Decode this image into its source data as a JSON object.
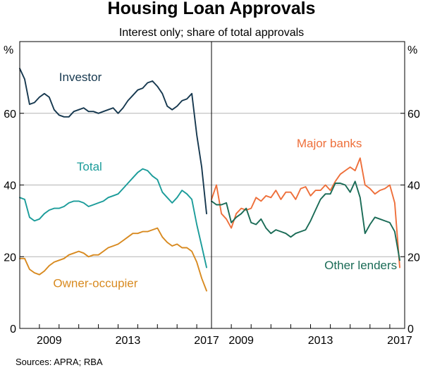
{
  "chart_data": {
    "type": "line",
    "title": "Housing Loan Approvals",
    "subtitle": "Interest only; share of total approvals",
    "unit_left": "%",
    "unit_right": "%",
    "source": "Sources: APRA; RBA",
    "ylim": [
      0,
      80
    ],
    "yticks": [
      0,
      20,
      40,
      60
    ],
    "xlim": [
      2008.0,
      2017.75
    ],
    "xticks": [
      2009,
      2013,
      2017
    ],
    "panels": [
      {
        "name": "left",
        "series": [
          {
            "name": "Investor",
            "color": "#16384f",
            "x": [
              2008.0,
              2008.25,
              2008.5,
              2008.75,
              2009.0,
              2009.25,
              2009.5,
              2009.75,
              2010.0,
              2010.25,
              2010.5,
              2010.75,
              2011.0,
              2011.25,
              2011.5,
              2011.75,
              2012.0,
              2012.25,
              2012.5,
              2012.75,
              2013.0,
              2013.25,
              2013.5,
              2013.75,
              2014.0,
              2014.25,
              2014.5,
              2014.75,
              2015.0,
              2015.25,
              2015.5,
              2015.75,
              2016.0,
              2016.25,
              2016.5,
              2016.75,
              2017.0,
              2017.25,
              2017.5
            ],
            "values": [
              72.5,
              69.5,
              62.5,
              63,
              64.5,
              65.5,
              64.5,
              61,
              59.5,
              59,
              59,
              60.5,
              61,
              61.5,
              60.5,
              60.5,
              60,
              60.5,
              61,
              61.5,
              60,
              61.5,
              63.5,
              65,
              66.5,
              67,
              68.5,
              69,
              67.5,
              65.5,
              62,
              61,
              62,
              63.5,
              64,
              65.5,
              54,
              45,
              32
            ]
          },
          {
            "name": "Total",
            "color": "#1b9c9a",
            "x": [
              2008.0,
              2008.25,
              2008.5,
              2008.75,
              2009.0,
              2009.25,
              2009.5,
              2009.75,
              2010.0,
              2010.25,
              2010.5,
              2010.75,
              2011.0,
              2011.25,
              2011.5,
              2011.75,
              2012.0,
              2012.25,
              2012.5,
              2012.75,
              2013.0,
              2013.25,
              2013.5,
              2013.75,
              2014.0,
              2014.25,
              2014.5,
              2014.75,
              2015.0,
              2015.25,
              2015.5,
              2015.75,
              2016.0,
              2016.25,
              2016.5,
              2016.75,
              2017.0,
              2017.25,
              2017.5
            ],
            "values": [
              36.5,
              36,
              31,
              30,
              30.5,
              32,
              33,
              33.5,
              33.5,
              34,
              35,
              35.5,
              35.5,
              35,
              34,
              34.5,
              35,
              35.5,
              36.5,
              37,
              37.5,
              39,
              40.5,
              42,
              43.5,
              44.5,
              44,
              42.5,
              41.5,
              38,
              36.5,
              35,
              36.5,
              38.5,
              37.5,
              36,
              29,
              23,
              17
            ]
          },
          {
            "name": "Owner-occupier",
            "color": "#d88a20",
            "x": [
              2008.0,
              2008.25,
              2008.5,
              2008.75,
              2009.0,
              2009.25,
              2009.5,
              2009.75,
              2010.0,
              2010.25,
              2010.5,
              2010.75,
              2011.0,
              2011.25,
              2011.5,
              2011.75,
              2012.0,
              2012.25,
              2012.5,
              2012.75,
              2013.0,
              2013.25,
              2013.5,
              2013.75,
              2014.0,
              2014.25,
              2014.5,
              2014.75,
              2015.0,
              2015.25,
              2015.5,
              2015.75,
              2016.0,
              2016.25,
              2016.5,
              2016.75,
              2017.0,
              2017.25,
              2017.5
            ],
            "values": [
              19.5,
              19.5,
              16.5,
              15.5,
              15,
              16,
              17.5,
              18.5,
              19,
              19.5,
              20.5,
              21,
              21.5,
              21,
              20,
              20.5,
              20.5,
              21.5,
              22.5,
              23,
              23.5,
              24.5,
              25.5,
              26.5,
              26.5,
              27,
              27,
              27.5,
              28,
              25.5,
              24,
              23,
              23.5,
              22.5,
              22.5,
              21.5,
              18.5,
              14,
              10.5
            ]
          }
        ]
      },
      {
        "name": "right",
        "series": [
          {
            "name": "Major banks",
            "color": "#ee6f3a",
            "x": [
              2008.0,
              2008.25,
              2008.5,
              2008.75,
              2009.0,
              2009.25,
              2009.5,
              2009.75,
              2010.0,
              2010.25,
              2010.5,
              2010.75,
              2011.0,
              2011.25,
              2011.5,
              2011.75,
              2012.0,
              2012.25,
              2012.5,
              2012.75,
              2013.0,
              2013.25,
              2013.5,
              2013.75,
              2014.0,
              2014.25,
              2014.5,
              2014.75,
              2015.0,
              2015.25,
              2015.5,
              2015.75,
              2016.0,
              2016.25,
              2016.5,
              2016.75,
              2017.0,
              2017.25,
              2017.5
            ],
            "values": [
              36,
              40,
              32,
              30.5,
              28,
              32,
              33.5,
              33,
              33.5,
              36.5,
              35.5,
              37,
              36.5,
              38.5,
              36,
              38,
              38,
              36,
              39,
              39.5,
              37,
              38.5,
              38.5,
              40,
              38.5,
              41,
              43,
              44,
              45,
              44,
              47.5,
              40,
              39,
              37.5,
              38.5,
              39,
              40,
              35,
              17
            ]
          },
          {
            "name": "Other lenders",
            "color": "#1a6b56",
            "x": [
              2008.0,
              2008.25,
              2008.5,
              2008.75,
              2009.0,
              2009.25,
              2009.5,
              2009.75,
              2010.0,
              2010.25,
              2010.5,
              2010.75,
              2011.0,
              2011.25,
              2011.5,
              2011.75,
              2012.0,
              2012.25,
              2012.5,
              2012.75,
              2013.0,
              2013.25,
              2013.5,
              2013.75,
              2014.0,
              2014.25,
              2014.5,
              2014.75,
              2015.0,
              2015.25,
              2015.5,
              2015.75,
              2016.0,
              2016.25,
              2016.5,
              2016.75,
              2017.0,
              2017.25,
              2017.5
            ],
            "values": [
              35.5,
              34.5,
              34.5,
              35,
              29.5,
              31,
              32,
              33.5,
              29.5,
              29,
              30.5,
              28,
              26.5,
              27.5,
              27,
              26.5,
              25.5,
              26.5,
              27,
              27.5,
              30,
              33,
              36,
              37.5,
              37.5,
              40.5,
              40.5,
              40,
              38,
              41,
              36.5,
              26.5,
              29,
              31,
              30.5,
              30,
              29.5,
              27,
              19
            ]
          }
        ]
      }
    ]
  }
}
